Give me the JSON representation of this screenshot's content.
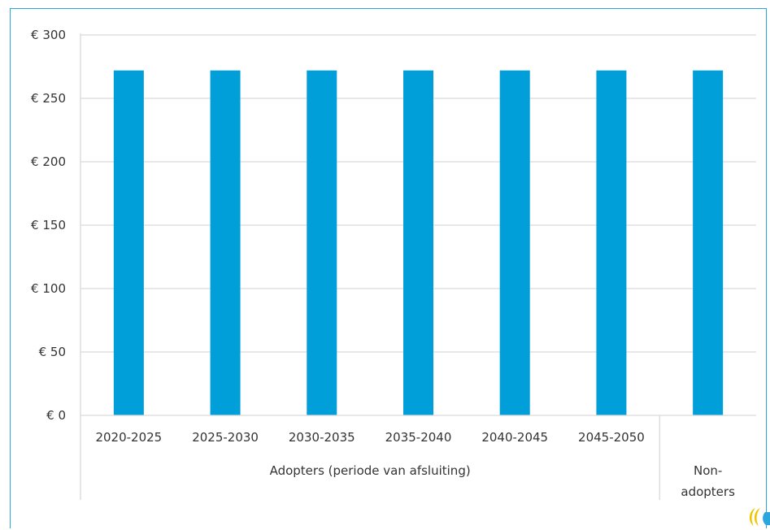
{
  "chart_data": {
    "type": "bar",
    "title": "",
    "xlabel": "",
    "ylabel": "",
    "categories": [
      "2020-2025",
      "2025-2030",
      "2030-2035",
      "2035-2040",
      "2040-2045",
      "2045-2050",
      "Non-adopters"
    ],
    "category_groups": [
      {
        "label": "Adopters (periode van afsluiting)",
        "categories": [
          "2020-2025",
          "2025-2030",
          "2030-2035",
          "2035-2040",
          "2040-2045",
          "2045-2050"
        ]
      },
      {
        "label": "Non-adopters",
        "label_lines": [
          "Non-",
          "adopters"
        ],
        "categories": [
          "Non-adopters"
        ]
      }
    ],
    "values": [
      272,
      272,
      272,
      272,
      272,
      272,
      272
    ],
    "ylim": [
      0,
      300
    ],
    "yticks": [
      0,
      50,
      100,
      150,
      200,
      250,
      300
    ],
    "ytick_labels": [
      "€ 0",
      "€ 50",
      "€ 100",
      "€ 150",
      "€ 200",
      "€ 250",
      "€ 300"
    ],
    "grid": true,
    "bar_color": "#009fda",
    "grid_color": "#d9d9d9",
    "legend": "none"
  },
  "logo": {
    "icon": "logo-mark-icon",
    "colors": [
      "#f2c400",
      "#2aa6dc"
    ]
  }
}
